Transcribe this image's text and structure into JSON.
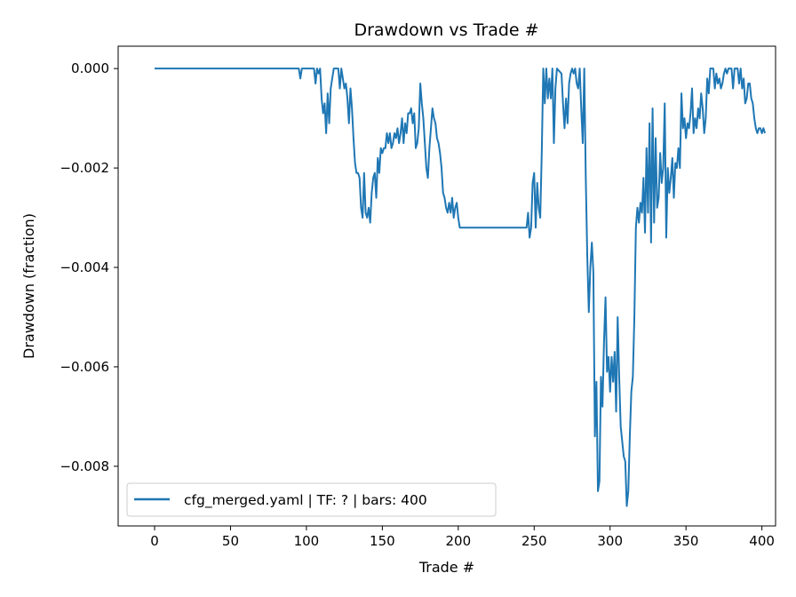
{
  "chart_data": {
    "type": "line",
    "title": "Drawdown vs Trade #",
    "xlabel": "Trade #",
    "ylabel": "Drawdown (fraction)",
    "xlim": [
      -24,
      409
    ],
    "ylim": [
      -0.0092,
      0.00045
    ],
    "xticks": [
      0,
      50,
      100,
      150,
      200,
      250,
      300,
      350,
      400
    ],
    "yticks": [
      0.0,
      -0.002,
      -0.004,
      -0.006,
      -0.008
    ],
    "ytick_labels": [
      "0.000",
      "−0.002",
      "−0.004",
      "−0.006",
      "−0.008"
    ],
    "grid": false,
    "legend_position": "lower-left",
    "series": [
      {
        "name": "cfg_merged.yaml | TF: ? | bars: 400",
        "color": "#1f77b4",
        "points": [
          [
            0,
            0.0
          ],
          [
            95,
            0.0
          ],
          [
            96,
            -0.0002
          ],
          [
            97,
            0.0
          ],
          [
            105,
            0.0
          ],
          [
            106,
            -0.0003
          ],
          [
            107,
            0.0
          ],
          [
            108,
            -0.0001
          ],
          [
            109,
            0.0
          ],
          [
            110,
            -0.0006
          ],
          [
            111,
            -0.0009
          ],
          [
            112,
            -0.0007
          ],
          [
            113,
            -0.0013
          ],
          [
            114,
            -0.0005
          ],
          [
            115,
            -0.0011
          ],
          [
            116,
            -0.0004
          ],
          [
            117,
            -0.0002
          ],
          [
            118,
            0.0
          ],
          [
            121,
            0.0
          ],
          [
            122,
            -0.0004
          ],
          [
            123,
            0.0
          ],
          [
            124,
            -0.0002
          ],
          [
            125,
            -0.0004
          ],
          [
            126,
            -0.0003
          ],
          [
            127,
            -0.0006
          ],
          [
            128,
            -0.0011
          ],
          [
            129,
            -0.0004
          ],
          [
            130,
            -0.0008
          ],
          [
            131,
            -0.0014
          ],
          [
            132,
            -0.0019
          ],
          [
            133,
            -0.0021
          ],
          [
            134,
            -0.0021
          ],
          [
            135,
            -0.0022
          ],
          [
            136,
            -0.0028
          ],
          [
            137,
            -0.003
          ],
          [
            138,
            -0.0021
          ],
          [
            139,
            -0.0029
          ],
          [
            140,
            -0.003
          ],
          [
            141,
            -0.0028
          ],
          [
            142,
            -0.0031
          ],
          [
            143,
            -0.0025
          ],
          [
            144,
            -0.0022
          ],
          [
            145,
            -0.0021
          ],
          [
            146,
            -0.0026
          ],
          [
            147,
            -0.0018
          ],
          [
            148,
            -0.0021
          ],
          [
            149,
            -0.0016
          ],
          [
            150,
            -0.0017
          ],
          [
            151,
            -0.0016
          ],
          [
            152,
            -0.0016
          ],
          [
            153,
            -0.0013
          ],
          [
            154,
            -0.0015
          ],
          [
            155,
            -0.0013
          ],
          [
            156,
            -0.0016
          ],
          [
            157,
            -0.0015
          ],
          [
            158,
            -0.0013
          ],
          [
            159,
            -0.0014
          ],
          [
            160,
            -0.0012
          ],
          [
            161,
            -0.0015
          ],
          [
            162,
            -0.0013
          ],
          [
            163,
            -0.001
          ],
          [
            164,
            -0.0015
          ],
          [
            165,
            -0.0011
          ],
          [
            166,
            -0.0013
          ],
          [
            167,
            -0.0009
          ],
          [
            168,
            -0.0009
          ],
          [
            169,
            -0.0008
          ],
          [
            170,
            -0.0011
          ],
          [
            171,
            -0.0009
          ],
          [
            172,
            -0.0016
          ],
          [
            173,
            -0.0015
          ],
          [
            174,
            -0.0012
          ],
          [
            175,
            -0.0003
          ],
          [
            176,
            -0.0007
          ],
          [
            177,
            -0.001
          ],
          [
            178,
            -0.0015
          ],
          [
            179,
            -0.002
          ],
          [
            180,
            -0.0022
          ],
          [
            181,
            -0.0016
          ],
          [
            182,
            -0.0012
          ],
          [
            183,
            -0.0008
          ],
          [
            184,
            -0.001
          ],
          [
            185,
            -0.0011
          ],
          [
            186,
            -0.0014
          ],
          [
            187,
            -0.0015
          ],
          [
            188,
            -0.0017
          ],
          [
            189,
            -0.002
          ],
          [
            190,
            -0.0025
          ],
          [
            191,
            -0.0026
          ],
          [
            192,
            -0.0028
          ],
          [
            193,
            -0.0029
          ],
          [
            194,
            -0.0027
          ],
          [
            195,
            -0.0029
          ],
          [
            196,
            -0.0026
          ],
          [
            197,
            -0.003
          ],
          [
            198,
            -0.0028
          ],
          [
            199,
            -0.0027
          ],
          [
            200,
            -0.003
          ],
          [
            201,
            -0.0032
          ],
          [
            202,
            -0.0032
          ],
          [
            245,
            -0.0032
          ],
          [
            246,
            -0.0029
          ],
          [
            247,
            -0.0034
          ],
          [
            248,
            -0.0032
          ],
          [
            249,
            -0.0023
          ],
          [
            250,
            -0.0021
          ],
          [
            251,
            -0.0032
          ],
          [
            252,
            -0.0023
          ],
          [
            253,
            -0.0028
          ],
          [
            254,
            -0.003
          ],
          [
            255,
            -0.0017
          ],
          [
            256,
            0.0
          ],
          [
            257,
            -0.0007
          ],
          [
            258,
            0.0
          ],
          [
            259,
            -0.0006
          ],
          [
            260,
            -0.0002
          ],
          [
            261,
            -0.0006
          ],
          [
            262,
            0.0
          ],
          [
            263,
            -0.0015
          ],
          [
            264,
            -0.0004
          ],
          [
            265,
            0.0
          ],
          [
            268,
            -0.0001
          ],
          [
            269,
            -0.0007
          ],
          [
            270,
            -0.0012
          ],
          [
            271,
            -0.0006
          ],
          [
            272,
            -0.0011
          ],
          [
            273,
            -0.0003
          ],
          [
            274,
            -0.0001
          ],
          [
            275,
            0.0
          ],
          [
            276,
            -0.0001
          ],
          [
            277,
            0.0
          ],
          [
            278,
            -0.0003
          ],
          [
            279,
            -0.0004
          ],
          [
            280,
            0.0
          ],
          [
            281,
            -0.0008
          ],
          [
            282,
            -0.0015
          ],
          [
            283,
            0.0
          ],
          [
            284,
            -0.0022
          ],
          [
            285,
            -0.0038
          ],
          [
            286,
            -0.0049
          ],
          [
            287,
            -0.004
          ],
          [
            288,
            -0.0035
          ],
          [
            289,
            -0.0041
          ],
          [
            290,
            -0.0074
          ],
          [
            291,
            -0.0063
          ],
          [
            292,
            -0.0085
          ],
          [
            293,
            -0.0083
          ],
          [
            294,
            -0.0062
          ],
          [
            295,
            -0.0068
          ],
          [
            296,
            -0.0055
          ],
          [
            297,
            -0.0046
          ],
          [
            298,
            -0.0061
          ],
          [
            299,
            -0.0058
          ],
          [
            300,
            -0.0065
          ],
          [
            301,
            -0.0058
          ],
          [
            302,
            -0.0063
          ],
          [
            303,
            -0.0057
          ],
          [
            304,
            -0.0069
          ],
          [
            305,
            -0.005
          ],
          [
            306,
            -0.0062
          ],
          [
            307,
            -0.0072
          ],
          [
            308,
            -0.0075
          ],
          [
            309,
            -0.0078
          ],
          [
            310,
            -0.0079
          ],
          [
            311,
            -0.0088
          ],
          [
            312,
            -0.0085
          ],
          [
            313,
            -0.0074
          ],
          [
            314,
            -0.0065
          ],
          [
            315,
            -0.0062
          ],
          [
            316,
            -0.005
          ],
          [
            317,
            -0.0032
          ],
          [
            318,
            -0.0028
          ],
          [
            319,
            -0.0031
          ],
          [
            320,
            -0.0027
          ],
          [
            321,
            -0.0029
          ],
          [
            322,
            -0.0022
          ],
          [
            323,
            -0.0033
          ],
          [
            324,
            -0.0016
          ],
          [
            325,
            -0.0029
          ],
          [
            326,
            -0.0011
          ],
          [
            327,
            -0.0035
          ],
          [
            328,
            -0.0008
          ],
          [
            329,
            -0.0031
          ],
          [
            330,
            -0.0014
          ],
          [
            331,
            -0.0028
          ],
          [
            332,
            -0.0026
          ],
          [
            333,
            -0.0017
          ],
          [
            334,
            -0.0023
          ],
          [
            335,
            -0.002
          ],
          [
            336,
            -0.0007
          ],
          [
            337,
            -0.0034
          ],
          [
            338,
            -0.002
          ],
          [
            339,
            -0.0025
          ],
          [
            340,
            -0.0022
          ],
          [
            341,
            -0.0018
          ],
          [
            342,
            -0.0026
          ],
          [
            343,
            -0.0019
          ],
          [
            344,
            -0.002
          ],
          [
            345,
            -0.0016
          ],
          [
            346,
            -0.002
          ],
          [
            347,
            -0.0005
          ],
          [
            348,
            -0.0012
          ],
          [
            349,
            -0.001
          ],
          [
            350,
            -0.0014
          ],
          [
            351,
            -0.0011
          ],
          [
            352,
            -0.0012
          ],
          [
            353,
            -0.0009
          ],
          [
            354,
            -0.0004
          ],
          [
            355,
            -0.0013
          ],
          [
            356,
            -0.001
          ],
          [
            357,
            -0.0012
          ],
          [
            358,
            -0.0008
          ],
          [
            359,
            -0.001
          ],
          [
            360,
            -0.0005
          ],
          [
            361,
            -0.0008
          ],
          [
            362,
            -0.0013
          ],
          [
            363,
            -0.001
          ],
          [
            364,
            -0.0002
          ],
          [
            365,
            -0.0005
          ],
          [
            366,
            0.0
          ],
          [
            368,
            0.0
          ],
          [
            369,
            -0.0004
          ],
          [
            370,
            -0.0001
          ],
          [
            371,
            -0.0003
          ],
          [
            372,
            -0.0002
          ],
          [
            373,
            -0.0004
          ],
          [
            374,
            -0.0003
          ],
          [
            375,
            -0.0001
          ],
          [
            376,
            0.0
          ],
          [
            377,
            -0.0001
          ],
          [
            378,
            0.0
          ],
          [
            380,
            0.0
          ],
          [
            381,
            -0.0004
          ],
          [
            382,
            0.0
          ],
          [
            384,
            0.0
          ],
          [
            385,
            -0.0003
          ],
          [
            386,
            0.0
          ],
          [
            387,
            -0.0004
          ],
          [
            388,
            -0.0002
          ],
          [
            389,
            -0.0007
          ],
          [
            390,
            -0.0006
          ],
          [
            391,
            -0.0003
          ],
          [
            392,
            -0.0003
          ],
          [
            393,
            -0.0006
          ],
          [
            394,
            -0.0007
          ],
          [
            395,
            -0.001
          ],
          [
            396,
            -0.0012
          ],
          [
            397,
            -0.0013
          ],
          [
            398,
            -0.0012
          ],
          [
            399,
            -0.0012
          ],
          [
            400,
            -0.0013
          ],
          [
            401,
            -0.0012
          ],
          [
            402,
            -0.0013
          ]
        ]
      }
    ]
  }
}
